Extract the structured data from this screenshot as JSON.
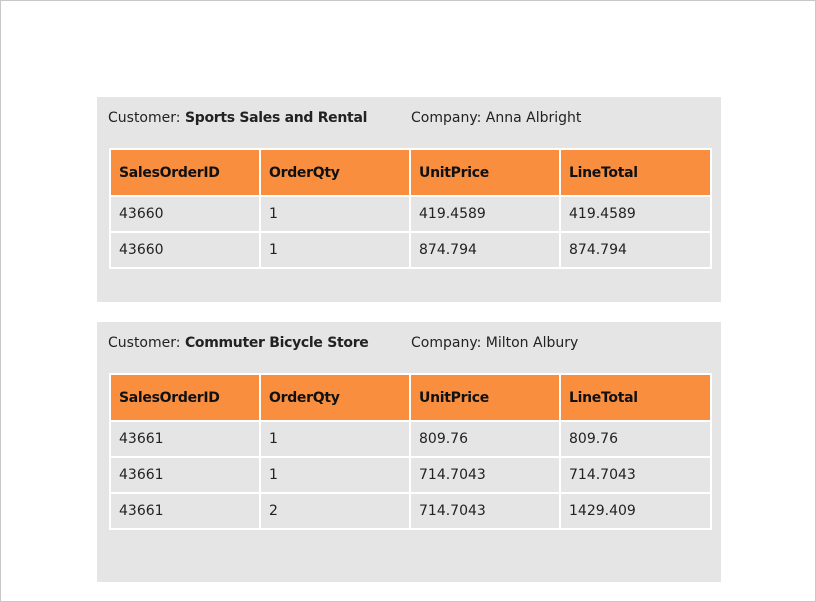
{
  "labels": {
    "customer_prefix": "Customer: ",
    "company_prefix": "Company: "
  },
  "columns": [
    "SalesOrderID",
    "OrderQty",
    "UnitPrice",
    "LineTotal"
  ],
  "groups": [
    {
      "customer": "Sports Sales and Rental",
      "company": "Anna Albright",
      "rows": [
        [
          "43660",
          "1",
          "419.4589",
          "419.4589"
        ],
        [
          "43660",
          "1",
          "874.794",
          "874.794"
        ]
      ]
    },
    {
      "customer": "Commuter Bicycle Store",
      "company": "Milton Albury",
      "rows": [
        [
          "43661",
          "1",
          "809.76",
          "809.76"
        ],
        [
          "43661",
          "1",
          "714.7043",
          "714.7043"
        ],
        [
          "43661",
          "2",
          "714.7043",
          "1429.409"
        ]
      ]
    }
  ],
  "colors": {
    "header_bg": "#f98e3f",
    "group_bg": "#e5e5e5"
  }
}
